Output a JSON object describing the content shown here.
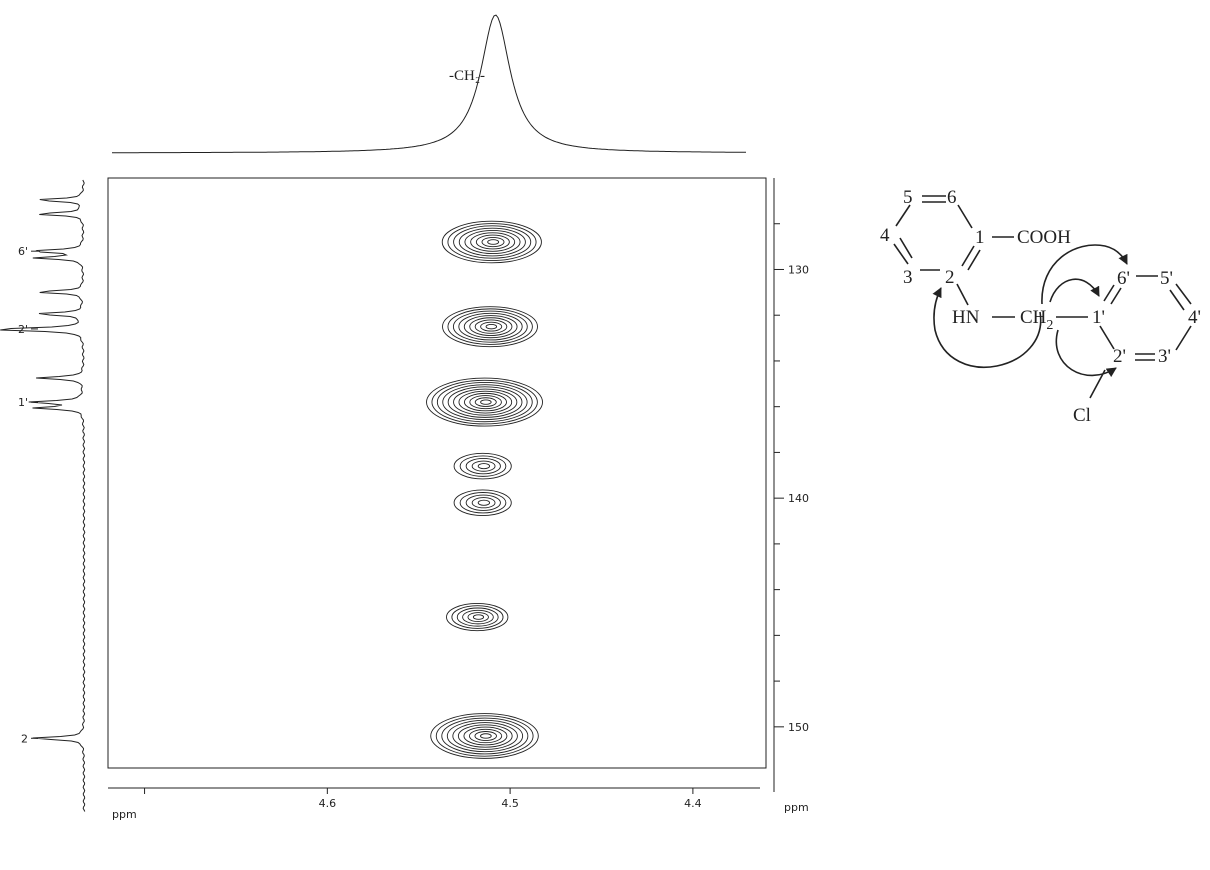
{
  "chart_data": {
    "type": "contour",
    "x_axis": {
      "label": "ppm",
      "direction": "reversed",
      "range": [
        4.72,
        4.36
      ],
      "ticks": [
        {
          "value": 4.6,
          "label": "4.6"
        },
        {
          "value": 4.5,
          "label": "4.5"
        },
        {
          "value": 4.4,
          "label": "4.4"
        }
      ]
    },
    "y_axis": {
      "label": "ppm",
      "range": [
        126.0,
        151.8
      ],
      "ticks": [
        {
          "value": 130,
          "label": "130"
        },
        {
          "value": 140,
          "label": "140"
        },
        {
          "value": 150,
          "label": "150"
        }
      ]
    },
    "top_projection": {
      "label": "-CH₂-",
      "peak_ppm": 4.508
    },
    "left_projection": {
      "peaks": [
        {
          "label": "6'",
          "ppm": 129.2
        },
        {
          "label": "2'",
          "ppm": 132.6
        },
        {
          "label": "1'",
          "ppm": 135.8
        },
        {
          "label": "2",
          "ppm": 150.5
        }
      ]
    },
    "cross_peaks": [
      {
        "x": 4.51,
        "y": 128.8,
        "intensity": 0.8
      },
      {
        "x": 4.511,
        "y": 132.5,
        "intensity": 0.75
      },
      {
        "x": 4.514,
        "y": 135.8,
        "intensity": 1.0
      },
      {
        "x": 4.515,
        "y": 138.6,
        "intensity": 0.3
      },
      {
        "x": 4.515,
        "y": 140.2,
        "intensity": 0.3
      },
      {
        "x": 4.518,
        "y": 145.2,
        "intensity": 0.35
      },
      {
        "x": 4.514,
        "y": 150.4,
        "intensity": 0.9
      }
    ],
    "grid": false
  },
  "structure": {
    "atoms": {
      "c1": "1",
      "c2": "2",
      "c3": "3",
      "c4": "4",
      "c5": "5",
      "c6": "6",
      "c1p": "1'",
      "c2p": "2'",
      "c3p": "3'",
      "c4p": "4'",
      "c5p": "5'",
      "c6p": "6'"
    },
    "groups": {
      "cooh": "COOH",
      "nh": "HN",
      "ch2_main": "CH",
      "ch2_sub": "2",
      "cl": "Cl"
    }
  }
}
